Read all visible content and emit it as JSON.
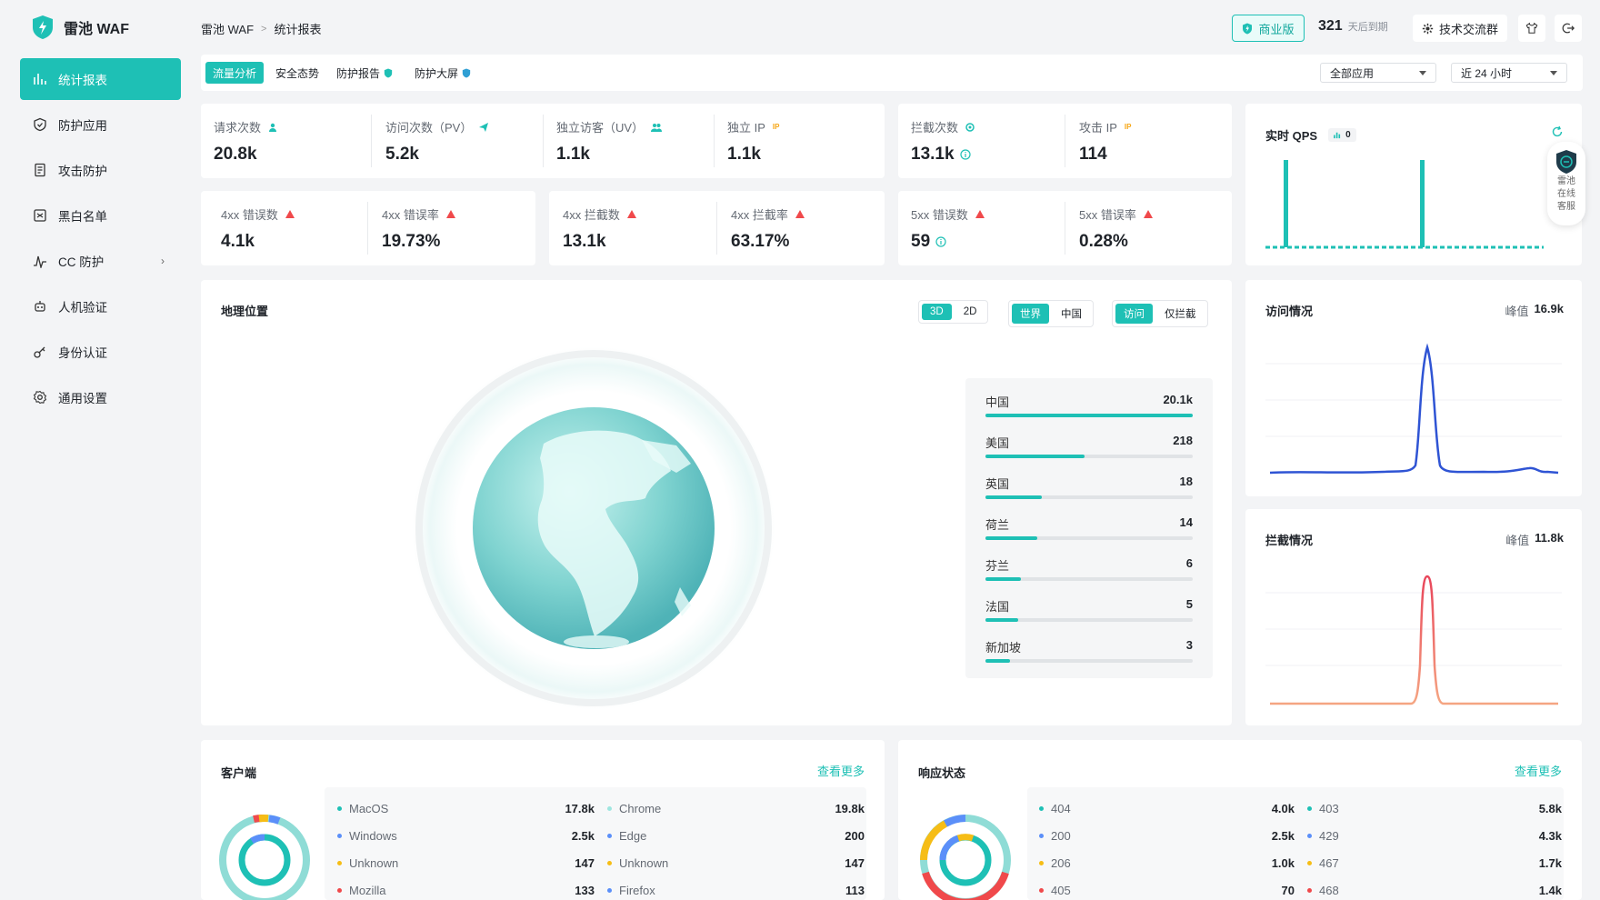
{
  "app": {
    "name": "雷池 WAF"
  },
  "breadcrumb": {
    "root": "雷池 WAF",
    "current": "统计报表"
  },
  "header": {
    "edition": "商业版",
    "days": "321",
    "days_label": "天后到期",
    "group": "技术交流群"
  },
  "sidebar": {
    "items": [
      {
        "label": "统计报表"
      },
      {
        "label": "防护应用"
      },
      {
        "label": "攻击防护"
      },
      {
        "label": "黑白名单"
      },
      {
        "label": "CC 防护"
      },
      {
        "label": "人机验证"
      },
      {
        "label": "身份认证"
      },
      {
        "label": "通用设置"
      }
    ]
  },
  "tabs": [
    {
      "label": "流量分析"
    },
    {
      "label": "安全态势"
    },
    {
      "label": "防护报告"
    },
    {
      "label": "防护大屏"
    }
  ],
  "filters": {
    "app": "全部应用",
    "range": "近 24 小时"
  },
  "stats": {
    "requests": {
      "label": "请求次数",
      "value": "20.8k"
    },
    "pv": {
      "label": "访问次数（PV）",
      "value": "5.2k"
    },
    "uv": {
      "label": "独立访客（UV）",
      "value": "1.1k"
    },
    "ip": {
      "label": "独立 IP",
      "value": "1.1k"
    },
    "blocked": {
      "label": "拦截次数",
      "value": "13.1k"
    },
    "attack_ip": {
      "label": "攻击 IP",
      "value": "114"
    },
    "e4xx": {
      "label": "4xx 错误数",
      "value": "4.1k"
    },
    "e4xx_rate": {
      "label": "4xx 错误率",
      "value": "19.73%"
    },
    "b4xx": {
      "label": "4xx 拦截数",
      "value": "13.1k"
    },
    "b4xx_rate": {
      "label": "4xx 拦截率",
      "value": "63.17%"
    },
    "e5xx": {
      "label": "5xx 错误数",
      "value": "59"
    },
    "e5xx_rate": {
      "label": "5xx 错误率",
      "value": "0.28%"
    }
  },
  "qps": {
    "title": "实时 QPS",
    "value": "0",
    "service": [
      "雷池",
      "在线",
      "客服"
    ]
  },
  "geo": {
    "title": "地理位置",
    "view_toggle": [
      "3D",
      "2D"
    ],
    "scope_toggle": [
      "世界",
      "中国"
    ],
    "mode_toggle": [
      "访问",
      "仅拦截"
    ],
    "rows": [
      {
        "name": "中国",
        "value": "20.1k",
        "pct": 1.0
      },
      {
        "name": "美国",
        "value": "218",
        "pct": 0.48
      },
      {
        "name": "英国",
        "value": "18",
        "pct": 0.27
      },
      {
        "name": "荷兰",
        "value": "14",
        "pct": 0.25
      },
      {
        "name": "芬兰",
        "value": "6",
        "pct": 0.17
      },
      {
        "name": "法国",
        "value": "5",
        "pct": 0.16
      },
      {
        "name": "新加坡",
        "value": "3",
        "pct": 0.12
      }
    ]
  },
  "visits": {
    "title": "访问情况",
    "peak_label": "峰值",
    "peak": "16.9k",
    "color": "#2f54d4"
  },
  "blocks": {
    "title": "拦截情况",
    "peak_label": "峰值",
    "peak": "11.8k",
    "color": "#f06a6a"
  },
  "clients": {
    "title": "客户端",
    "more": "查看更多",
    "left": [
      {
        "name": "MacOS",
        "value": "17.8k",
        "color": "#1ec0b5"
      },
      {
        "name": "Windows",
        "value": "2.5k",
        "color": "#5b8ff9"
      },
      {
        "name": "Unknown",
        "value": "147",
        "color": "#f6bd16"
      },
      {
        "name": "Mozilla",
        "value": "133",
        "color": "#f0494b"
      }
    ],
    "right": [
      {
        "name": "Chrome",
        "value": "19.8k",
        "color": "#9ee6e0"
      },
      {
        "name": "Edge",
        "value": "200",
        "color": "#5b8ff9"
      },
      {
        "name": "Unknown",
        "value": "147",
        "color": "#f6bd16"
      },
      {
        "name": "Firefox",
        "value": "113",
        "color": "#5b8ff9"
      }
    ]
  },
  "status": {
    "title": "响应状态",
    "more": "查看更多",
    "left": [
      {
        "name": "404",
        "value": "4.0k",
        "color": "#1ec0b5"
      },
      {
        "name": "200",
        "value": "2.5k",
        "color": "#5b8ff9"
      },
      {
        "name": "206",
        "value": "1.0k",
        "color": "#f6bd16"
      },
      {
        "name": "405",
        "value": "70",
        "color": "#f0494b"
      }
    ],
    "right": [
      {
        "name": "403",
        "value": "5.8k",
        "color": "#1ec0b5"
      },
      {
        "name": "429",
        "value": "4.3k",
        "color": "#5b8ff9"
      },
      {
        "name": "467",
        "value": "1.7k",
        "color": "#f6bd16"
      },
      {
        "name": "468",
        "value": "1.4k",
        "color": "#f0494b"
      }
    ]
  }
}
